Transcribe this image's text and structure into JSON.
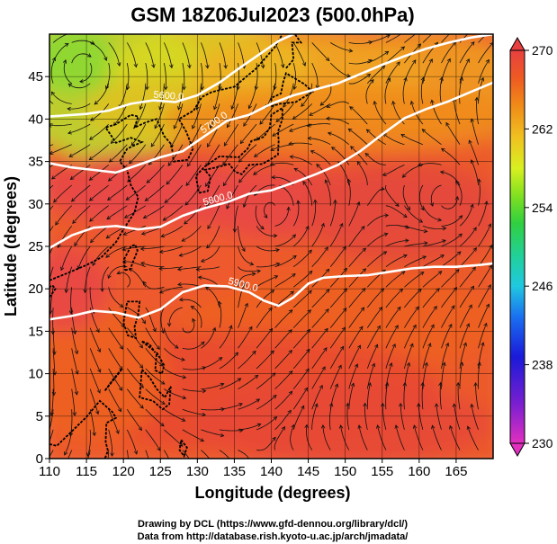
{
  "title": "GSM 18Z06Jul2023 (500.0hPa)",
  "credits": {
    "line1": "Drawing by DCL (https://www.gfd-dennou.org/library/dcl/)",
    "line2": "Data from http://database.rish.kyoto-u.ac.jp/arch/jmadata/"
  },
  "chart_data": {
    "type": "heatmap",
    "xlabel": "Longitude (degrees)",
    "ylabel": "Latitude  (degrees)",
    "xlim": [
      110,
      170
    ],
    "ylim": [
      0,
      50
    ],
    "xticks": [
      110,
      115,
      120,
      125,
      130,
      135,
      140,
      145,
      150,
      155,
      160,
      165
    ],
    "yticks": [
      0,
      5,
      10,
      15,
      20,
      25,
      30,
      35,
      40,
      45
    ],
    "grid": true,
    "colorbar": {
      "min": 230,
      "max": 270,
      "ticks": [
        230,
        238,
        246,
        254,
        262,
        270
      ],
      "colors": [
        "#e22fbf",
        "#7a1fd0",
        "#1a1ad8",
        "#1a6ef0",
        "#20c8e0",
        "#20d0a0",
        "#30d040",
        "#80e020",
        "#d8f020",
        "#f0c020",
        "#f08a18",
        "#ee5a22",
        "#e84040"
      ]
    },
    "contours": [
      {
        "label": "5600.0",
        "points": [
          [
            110,
            40.3
          ],
          [
            115,
            40.6
          ],
          [
            118,
            41
          ],
          [
            121,
            41.8
          ],
          [
            124,
            42.2
          ],
          [
            127,
            42
          ],
          [
            130,
            42.8
          ],
          [
            133,
            44.3
          ],
          [
            136,
            46.2
          ],
          [
            139,
            48
          ],
          [
            141,
            49.2
          ],
          [
            143,
            50
          ]
        ]
      },
      {
        "label": "5700.0",
        "points": [
          [
            110,
            34.8
          ],
          [
            113,
            34.3
          ],
          [
            116,
            34
          ],
          [
            119,
            33.7
          ],
          [
            122,
            34.6
          ],
          [
            125,
            35.5
          ],
          [
            128,
            36.2
          ],
          [
            131,
            38
          ],
          [
            134,
            39.8
          ],
          [
            137,
            40.5
          ],
          [
            140,
            41.8
          ],
          [
            143,
            42.8
          ],
          [
            146,
            43.5
          ],
          [
            149,
            44.2
          ],
          [
            152,
            45.3
          ],
          [
            155,
            46.4
          ],
          [
            158,
            47.4
          ],
          [
            161,
            48.3
          ],
          [
            164,
            49
          ],
          [
            167,
            49.6
          ],
          [
            170,
            50
          ]
        ]
      },
      {
        "label": "5800.0",
        "points": [
          [
            110,
            24.8
          ],
          [
            113,
            26.3
          ],
          [
            116,
            27.2
          ],
          [
            119,
            27.4
          ],
          [
            122,
            27
          ],
          [
            125,
            27.3
          ],
          [
            128,
            28.6
          ],
          [
            131,
            29.5
          ],
          [
            134,
            30.2
          ],
          [
            137,
            31.2
          ],
          [
            140,
            31.6
          ],
          [
            143,
            32.5
          ],
          [
            146,
            33.5
          ],
          [
            149,
            34.6
          ],
          [
            152,
            36.2
          ],
          [
            155,
            38.2
          ],
          [
            158,
            40.1
          ],
          [
            161,
            41.2
          ],
          [
            164,
            42.1
          ],
          [
            167,
            43.2
          ],
          [
            170,
            44.3
          ]
        ]
      },
      {
        "label": "5900.0",
        "points": [
          [
            110,
            16.4
          ],
          [
            113,
            16.8
          ],
          [
            116,
            17.4
          ],
          [
            119,
            17.2
          ],
          [
            122,
            16.6
          ],
          [
            125,
            17.6
          ],
          [
            128,
            19.6
          ],
          [
            131,
            20.4
          ],
          [
            134,
            20.3
          ],
          [
            137,
            19.6
          ],
          [
            139,
            18.6
          ],
          [
            141,
            18
          ],
          [
            143,
            19
          ],
          [
            145,
            20.6
          ],
          [
            147,
            21.3
          ],
          [
            150,
            21.5
          ],
          [
            153,
            21.6
          ],
          [
            156,
            22
          ],
          [
            159,
            22.4
          ],
          [
            162,
            22.6
          ],
          [
            165,
            22.6
          ],
          [
            168,
            22.8
          ],
          [
            170,
            23
          ]
        ]
      }
    ],
    "vortices": [
      [
        114.5,
        46.2
      ],
      [
        164,
        30.5
      ],
      [
        128.5,
        15.5
      ],
      [
        119.5,
        21
      ],
      [
        140,
        29.5
      ]
    ]
  }
}
